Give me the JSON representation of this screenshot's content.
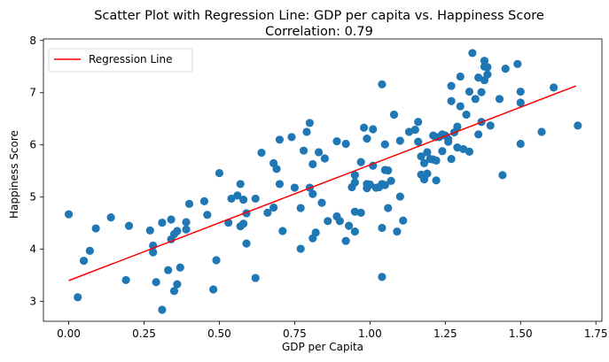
{
  "chart_data": {
    "type": "scatter",
    "title": "Scatter Plot with Regression Line: GDP per capita vs. Happiness Score",
    "subtitle": "Correlation: 0.79",
    "xlabel": "GDP per Capita",
    "ylabel": "Happiness Score",
    "xlim": [
      -0.084,
      1.77
    ],
    "ylim": [
      2.62,
      8.03
    ],
    "xticks": [
      0.0,
      0.25,
      0.5,
      0.75,
      1.0,
      1.25,
      1.5,
      1.75
    ],
    "xtick_labels": [
      "0.00",
      "0.25",
      "0.50",
      "0.75",
      "1.00",
      "1.25",
      "1.50",
      "1.75"
    ],
    "yticks": [
      3,
      4,
      5,
      6,
      7,
      8
    ],
    "ytick_labels": [
      "3",
      "4",
      "5",
      "6",
      "7",
      "8"
    ],
    "grid": false,
    "legend_position": "top-left",
    "legend": [
      "Regression Line"
    ],
    "colors": {
      "points": "#1f77b4",
      "regression": "#ff0000"
    },
    "regression_line": {
      "x": [
        0.0,
        1.684
      ],
      "y": [
        3.4,
        7.13
      ]
    },
    "points": [
      {
        "x": 0.0,
        "y": 4.67
      },
      {
        "x": 0.03,
        "y": 3.08
      },
      {
        "x": 0.05,
        "y": 3.78
      },
      {
        "x": 0.07,
        "y": 3.97
      },
      {
        "x": 0.09,
        "y": 4.4
      },
      {
        "x": 0.14,
        "y": 4.61
      },
      {
        "x": 0.19,
        "y": 3.41
      },
      {
        "x": 0.2,
        "y": 4.45
      },
      {
        "x": 0.27,
        "y": 4.36
      },
      {
        "x": 0.28,
        "y": 4.07
      },
      {
        "x": 0.28,
        "y": 3.94
      },
      {
        "x": 0.29,
        "y": 3.37
      },
      {
        "x": 0.31,
        "y": 4.51
      },
      {
        "x": 0.31,
        "y": 2.84
      },
      {
        "x": 0.33,
        "y": 3.6
      },
      {
        "x": 0.34,
        "y": 4.57
      },
      {
        "x": 0.34,
        "y": 4.19
      },
      {
        "x": 0.35,
        "y": 3.2
      },
      {
        "x": 0.35,
        "y": 4.29
      },
      {
        "x": 0.36,
        "y": 4.35
      },
      {
        "x": 0.36,
        "y": 3.33
      },
      {
        "x": 0.37,
        "y": 3.65
      },
      {
        "x": 0.39,
        "y": 4.52
      },
      {
        "x": 0.39,
        "y": 4.38
      },
      {
        "x": 0.4,
        "y": 4.87
      },
      {
        "x": 0.45,
        "y": 4.92
      },
      {
        "x": 0.46,
        "y": 4.66
      },
      {
        "x": 0.48,
        "y": 3.23
      },
      {
        "x": 0.49,
        "y": 3.79
      },
      {
        "x": 0.5,
        "y": 5.46
      },
      {
        "x": 0.53,
        "y": 4.51
      },
      {
        "x": 0.54,
        "y": 4.97
      },
      {
        "x": 0.56,
        "y": 5.03
      },
      {
        "x": 0.57,
        "y": 5.25
      },
      {
        "x": 0.57,
        "y": 4.44
      },
      {
        "x": 0.58,
        "y": 4.49
      },
      {
        "x": 0.58,
        "y": 4.95
      },
      {
        "x": 0.59,
        "y": 4.11
      },
      {
        "x": 0.59,
        "y": 4.69
      },
      {
        "x": 0.62,
        "y": 3.45
      },
      {
        "x": 0.62,
        "y": 4.97
      },
      {
        "x": 0.64,
        "y": 5.85
      },
      {
        "x": 0.66,
        "y": 4.7
      },
      {
        "x": 0.68,
        "y": 4.8
      },
      {
        "x": 0.68,
        "y": 5.65
      },
      {
        "x": 0.69,
        "y": 5.54
      },
      {
        "x": 0.7,
        "y": 6.1
      },
      {
        "x": 0.7,
        "y": 5.25
      },
      {
        "x": 0.71,
        "y": 4.35
      },
      {
        "x": 0.74,
        "y": 6.15
      },
      {
        "x": 0.75,
        "y": 5.18
      },
      {
        "x": 0.77,
        "y": 4.01
      },
      {
        "x": 0.77,
        "y": 4.79
      },
      {
        "x": 0.78,
        "y": 5.89
      },
      {
        "x": 0.79,
        "y": 6.25
      },
      {
        "x": 0.8,
        "y": 6.42
      },
      {
        "x": 0.8,
        "y": 5.18
      },
      {
        "x": 0.81,
        "y": 5.63
      },
      {
        "x": 0.81,
        "y": 5.06
      },
      {
        "x": 0.81,
        "y": 4.21
      },
      {
        "x": 0.82,
        "y": 4.32
      },
      {
        "x": 0.83,
        "y": 5.86
      },
      {
        "x": 0.84,
        "y": 4.89
      },
      {
        "x": 0.85,
        "y": 5.74
      },
      {
        "x": 0.86,
        "y": 4.54
      },
      {
        "x": 0.89,
        "y": 4.63
      },
      {
        "x": 0.89,
        "y": 6.07
      },
      {
        "x": 0.9,
        "y": 4.54
      },
      {
        "x": 0.92,
        "y": 6.02
      },
      {
        "x": 0.92,
        "y": 4.16
      },
      {
        "x": 0.93,
        "y": 4.45
      },
      {
        "x": 0.94,
        "y": 5.19
      },
      {
        "x": 0.95,
        "y": 5.28
      },
      {
        "x": 0.95,
        "y": 4.34
      },
      {
        "x": 0.95,
        "y": 5.42
      },
      {
        "x": 0.95,
        "y": 4.72
      },
      {
        "x": 0.97,
        "y": 4.7
      },
      {
        "x": 0.97,
        "y": 5.67
      },
      {
        "x": 0.98,
        "y": 6.33
      },
      {
        "x": 0.99,
        "y": 5.25
      },
      {
        "x": 0.99,
        "y": 6.12
      },
      {
        "x": 0.99,
        "y": 5.17
      },
      {
        "x": 1.0,
        "y": 5.24
      },
      {
        "x": 1.01,
        "y": 5.6
      },
      {
        "x": 1.01,
        "y": 6.3
      },
      {
        "x": 1.02,
        "y": 5.18
      },
      {
        "x": 1.03,
        "y": 5.19
      },
      {
        "x": 1.04,
        "y": 5.25
      },
      {
        "x": 1.04,
        "y": 7.16
      },
      {
        "x": 1.04,
        "y": 4.41
      },
      {
        "x": 1.04,
        "y": 3.47
      },
      {
        "x": 1.05,
        "y": 5.52
      },
      {
        "x": 1.05,
        "y": 5.23
      },
      {
        "x": 1.05,
        "y": 6.01
      },
      {
        "x": 1.06,
        "y": 5.51
      },
      {
        "x": 1.06,
        "y": 4.79
      },
      {
        "x": 1.07,
        "y": 5.31
      },
      {
        "x": 1.08,
        "y": 6.58
      },
      {
        "x": 1.09,
        "y": 4.34
      },
      {
        "x": 1.1,
        "y": 6.08
      },
      {
        "x": 1.1,
        "y": 5.01
      },
      {
        "x": 1.11,
        "y": 4.55
      },
      {
        "x": 1.13,
        "y": 6.25
      },
      {
        "x": 1.15,
        "y": 6.29
      },
      {
        "x": 1.16,
        "y": 6.44
      },
      {
        "x": 1.16,
        "y": 6.06
      },
      {
        "x": 1.17,
        "y": 5.43
      },
      {
        "x": 1.17,
        "y": 5.78
      },
      {
        "x": 1.18,
        "y": 5.65
      },
      {
        "x": 1.18,
        "y": 5.34
      },
      {
        "x": 1.19,
        "y": 5.45
      },
      {
        "x": 1.19,
        "y": 5.86
      },
      {
        "x": 1.2,
        "y": 5.73
      },
      {
        "x": 1.21,
        "y": 5.72
      },
      {
        "x": 1.21,
        "y": 6.18
      },
      {
        "x": 1.22,
        "y": 6.15
      },
      {
        "x": 1.22,
        "y": 5.7
      },
      {
        "x": 1.22,
        "y": 5.32
      },
      {
        "x": 1.23,
        "y": 6.15
      },
      {
        "x": 1.24,
        "y": 5.88
      },
      {
        "x": 1.24,
        "y": 6.2
      },
      {
        "x": 1.25,
        "y": 6.18
      },
      {
        "x": 1.26,
        "y": 6.06
      },
      {
        "x": 1.26,
        "y": 6.11
      },
      {
        "x": 1.27,
        "y": 7.13
      },
      {
        "x": 1.27,
        "y": 6.84
      },
      {
        "x": 1.27,
        "y": 5.73
      },
      {
        "x": 1.28,
        "y": 6.24
      },
      {
        "x": 1.29,
        "y": 5.95
      },
      {
        "x": 1.29,
        "y": 6.35
      },
      {
        "x": 1.3,
        "y": 7.31
      },
      {
        "x": 1.3,
        "y": 6.74
      },
      {
        "x": 1.31,
        "y": 5.92
      },
      {
        "x": 1.32,
        "y": 6.58
      },
      {
        "x": 1.33,
        "y": 7.02
      },
      {
        "x": 1.33,
        "y": 5.87
      },
      {
        "x": 1.34,
        "y": 7.76
      },
      {
        "x": 1.35,
        "y": 6.88
      },
      {
        "x": 1.36,
        "y": 6.2
      },
      {
        "x": 1.36,
        "y": 7.29
      },
      {
        "x": 1.37,
        "y": 6.44
      },
      {
        "x": 1.37,
        "y": 7.01
      },
      {
        "x": 1.38,
        "y": 7.5
      },
      {
        "x": 1.38,
        "y": 7.61
      },
      {
        "x": 1.38,
        "y": 7.24
      },
      {
        "x": 1.39,
        "y": 7.35
      },
      {
        "x": 1.39,
        "y": 7.49
      },
      {
        "x": 1.4,
        "y": 6.37
      },
      {
        "x": 1.43,
        "y": 6.88
      },
      {
        "x": 1.44,
        "y": 5.42
      },
      {
        "x": 1.45,
        "y": 7.46
      },
      {
        "x": 1.49,
        "y": 7.55
      },
      {
        "x": 1.5,
        "y": 6.02
      },
      {
        "x": 1.5,
        "y": 7.02
      },
      {
        "x": 1.5,
        "y": 6.81
      },
      {
        "x": 1.57,
        "y": 6.25
      },
      {
        "x": 1.61,
        "y": 7.1
      },
      {
        "x": 1.69,
        "y": 6.37
      }
    ]
  }
}
